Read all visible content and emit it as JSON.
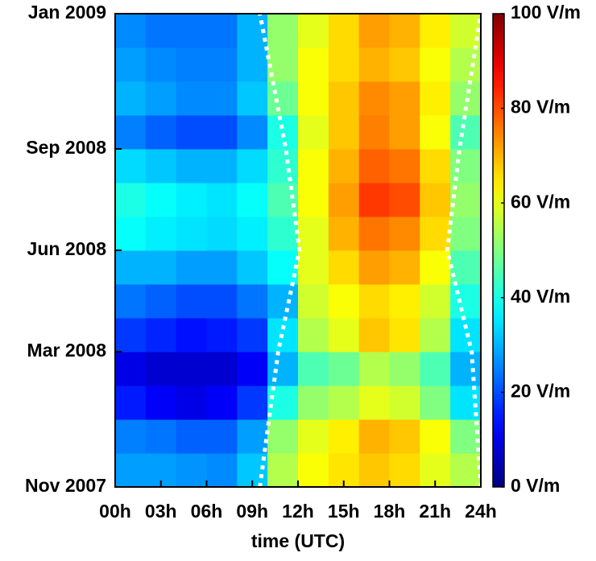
{
  "chart_data": {
    "type": "heatmap",
    "xlabel": "time (UTC)",
    "xlim": [
      0,
      24
    ],
    "xticks": [
      {
        "value": 0,
        "label": "00h"
      },
      {
        "value": 3,
        "label": "03h"
      },
      {
        "value": 6,
        "label": "06h"
      },
      {
        "value": 9,
        "label": "09h"
      },
      {
        "value": 12,
        "label": "12h"
      },
      {
        "value": 15,
        "label": "15h"
      },
      {
        "value": 18,
        "label": "18h"
      },
      {
        "value": 21,
        "label": "21h"
      },
      {
        "value": 24,
        "label": "24h"
      }
    ],
    "ylim": [
      0,
      14
    ],
    "yticks": [
      {
        "value": 0,
        "label": "Nov 2007"
      },
      {
        "value": 4,
        "label": "Mar 2008"
      },
      {
        "value": 7,
        "label": "Jun 2008"
      },
      {
        "value": 10,
        "label": "Sep 2008"
      },
      {
        "value": 14,
        "label": "Jan 2009"
      }
    ],
    "xbins": [
      0,
      2,
      4,
      6,
      8,
      10,
      12,
      14,
      16,
      18,
      20,
      22,
      24
    ],
    "ybins": [
      0,
      1,
      2,
      3,
      4,
      5,
      6,
      7,
      8,
      9,
      10,
      11,
      12,
      13,
      14
    ],
    "z": [
      [
        28,
        28,
        27,
        26,
        32,
        55,
        62,
        65,
        68,
        66,
        60,
        55
      ],
      [
        25,
        24,
        22,
        22,
        28,
        52,
        60,
        64,
        70,
        68,
        62,
        50
      ],
      [
        15,
        12,
        10,
        12,
        18,
        40,
        52,
        55,
        60,
        58,
        50,
        35
      ],
      [
        10,
        8,
        8,
        8,
        12,
        30,
        45,
        48,
        55,
        52,
        45,
        30
      ],
      [
        18,
        16,
        14,
        15,
        18,
        35,
        55,
        60,
        68,
        65,
        55,
        35
      ],
      [
        24,
        22,
        20,
        20,
        24,
        30,
        58,
        62,
        66,
        64,
        58,
        40
      ],
      [
        30,
        30,
        28,
        28,
        32,
        38,
        60,
        66,
        72,
        70,
        62,
        45
      ],
      [
        38,
        36,
        35,
        34,
        36,
        42,
        60,
        70,
        76,
        74,
        66,
        50
      ],
      [
        40,
        38,
        36,
        35,
        38,
        45,
        62,
        72,
        82,
        80,
        68,
        52
      ],
      [
        34,
        32,
        30,
        30,
        34,
        42,
        62,
        70,
        78,
        76,
        66,
        50
      ],
      [
        25,
        22,
        20,
        20,
        26,
        40,
        60,
        68,
        75,
        72,
        62,
        45
      ],
      [
        30,
        28,
        26,
        26,
        32,
        48,
        62,
        68,
        74,
        72,
        64,
        52
      ],
      [
        28,
        26,
        25,
        25,
        30,
        52,
        62,
        66,
        70,
        68,
        62,
        55
      ],
      [
        26,
        24,
        24,
        24,
        30,
        52,
        60,
        66,
        72,
        70,
        64,
        58
      ]
    ],
    "colormap": "jet",
    "clim": [
      0,
      100
    ],
    "cticks": [
      {
        "value": 0,
        "label": "0 V/m"
      },
      {
        "value": 20,
        "label": "20 V/m"
      },
      {
        "value": 40,
        "label": "40 V/m"
      },
      {
        "value": 60,
        "label": "60 V/m"
      },
      {
        "value": 80,
        "label": "80 V/m"
      },
      {
        "value": 100,
        "label": "100 V/m"
      }
    ],
    "curves": [
      {
        "color": "#ffffff",
        "x": [
          9.5,
          10.7,
          12.1,
          11.2,
          9.5
        ],
        "y": [
          0,
          4,
          7,
          10,
          14
        ]
      },
      {
        "color": "#ffffff",
        "x": [
          24,
          23.4,
          21.8,
          22.6,
          24
        ],
        "y": [
          0,
          4,
          7,
          10,
          14
        ]
      }
    ]
  }
}
